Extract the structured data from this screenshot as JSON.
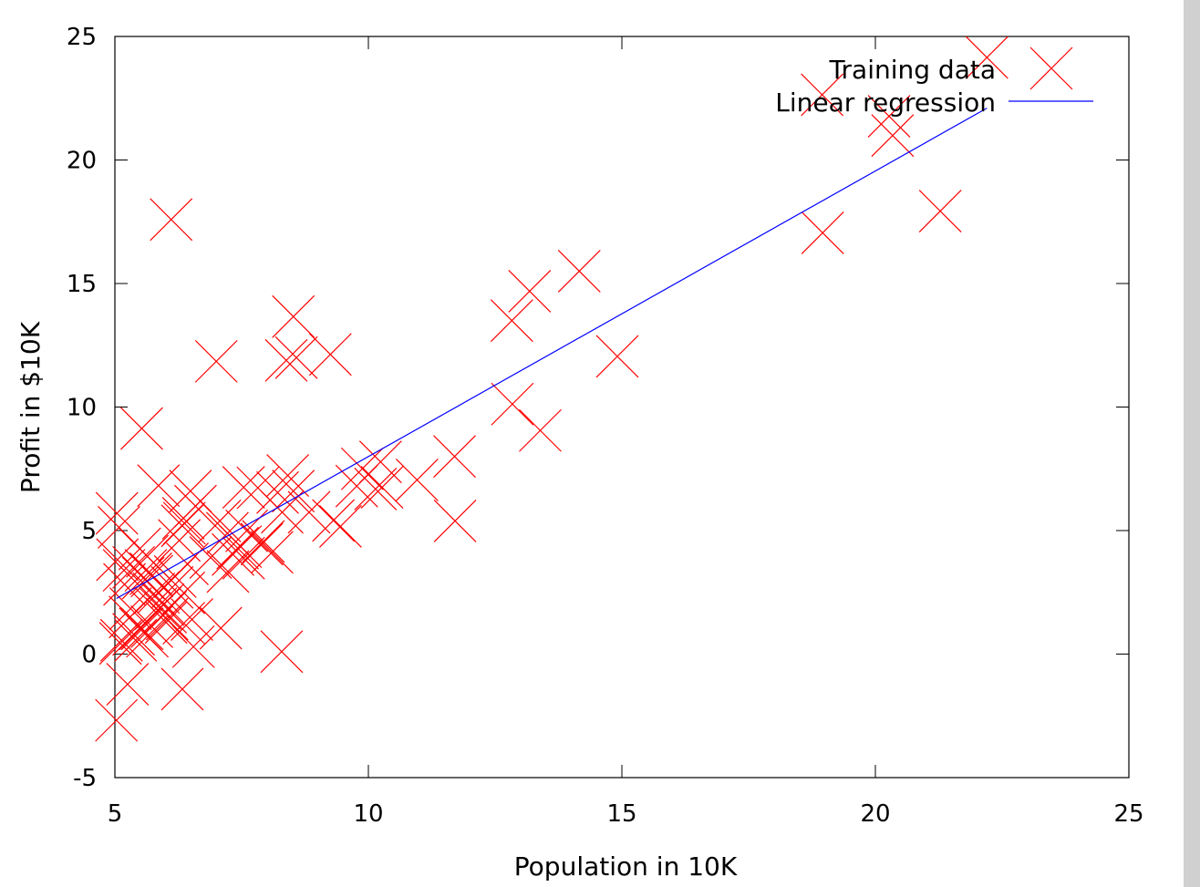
{
  "chart_data": {
    "type": "scatter",
    "xlabel": "Population in 10K",
    "ylabel": "Profit in $10K",
    "xlim": [
      5,
      25
    ],
    "ylim": [
      -5,
      25
    ],
    "xticks": [
      5,
      10,
      15,
      20,
      25
    ],
    "yticks": [
      -5,
      0,
      5,
      10,
      15,
      20,
      25
    ],
    "grid": false,
    "legend_position": "top-right",
    "series": [
      {
        "name": "Training data",
        "kind": "scatter",
        "marker": "x",
        "color": "#ff0000",
        "points": [
          [
            6.11,
            17.59
          ],
          [
            5.53,
            9.13
          ],
          [
            8.52,
            13.66
          ],
          [
            7.0,
            11.85
          ],
          [
            5.86,
            6.82
          ],
          [
            8.38,
            11.89
          ],
          [
            7.48,
            4.35
          ],
          [
            8.58,
            12.0
          ],
          [
            6.49,
            6.6
          ],
          [
            5.05,
            3.82
          ],
          [
            5.71,
            3.25
          ],
          [
            14.16,
            15.5
          ],
          [
            5.73,
            3.16
          ],
          [
            8.41,
            7.23
          ],
          [
            5.64,
            0.72
          ],
          [
            5.37,
            3.51
          ],
          [
            6.37,
            5.3
          ],
          [
            5.13,
            0.56
          ],
          [
            6.43,
            3.65
          ],
          [
            7.07,
            5.39
          ],
          [
            6.19,
            3.14
          ],
          [
            20.27,
            21.77
          ],
          [
            5.49,
            4.26
          ],
          [
            6.33,
            5.19
          ],
          [
            5.56,
            3.08
          ],
          [
            18.95,
            22.64
          ],
          [
            12.83,
            13.5
          ],
          [
            10.96,
            7.05
          ],
          [
            13.18,
            14.69
          ],
          [
            22.2,
            24.15
          ],
          [
            5.25,
            -1.22
          ],
          [
            6.59,
            5.99
          ],
          [
            9.25,
            12.13
          ],
          [
            5.89,
            1.85
          ],
          [
            8.21,
            6.54
          ],
          [
            7.93,
            4.56
          ],
          [
            8.1,
            4.12
          ],
          [
            5.61,
            3.39
          ],
          [
            12.84,
            10.12
          ],
          [
            6.35,
            5.5
          ],
          [
            5.41,
            0.56
          ],
          [
            6.89,
            3.91
          ],
          [
            11.71,
            5.39
          ],
          [
            5.77,
            2.44
          ],
          [
            7.82,
            6.73
          ],
          [
            7.09,
            1.05
          ],
          [
            5.08,
            5.13
          ],
          [
            5.81,
            1.84
          ],
          [
            11.7,
            8.0
          ],
          [
            5.54,
            1.02
          ],
          [
            7.54,
            6.75
          ],
          [
            5.31,
            1.84
          ],
          [
            7.42,
            4.29
          ],
          [
            7.6,
            4.99
          ],
          [
            6.03,
            1.42
          ],
          [
            6.33,
            -1.42
          ],
          [
            6.36,
            2.48
          ],
          [
            6.27,
            4.6
          ],
          [
            5.64,
            3.96
          ],
          [
            9.31,
            5.41
          ],
          [
            9.45,
            5.17
          ],
          [
            8.83,
            5.74
          ],
          [
            5.18,
            3.39
          ],
          [
            21.28,
            17.93
          ],
          [
            14.91,
            12.05
          ],
          [
            18.96,
            17.05
          ],
          [
            7.22,
            4.89
          ],
          [
            8.3,
            5.74
          ],
          [
            10.24,
            7.78
          ],
          [
            5.5,
            1.02
          ],
          [
            20.34,
            20.99
          ],
          [
            10.14,
            6.68
          ],
          [
            7.33,
            4.03
          ],
          [
            6.01,
            1.28
          ],
          [
            7.23,
            3.34
          ],
          [
            5.03,
            -2.68
          ],
          [
            6.55,
            0.3
          ],
          [
            7.54,
            3.88
          ],
          [
            5.04,
            5.7
          ],
          [
            10.27,
            6.75
          ],
          [
            5.11,
            0.43
          ],
          [
            5.73,
            1.11
          ],
          [
            5.19,
            2.82
          ],
          [
            6.36,
            1.25
          ],
          [
            9.77,
            6.8
          ],
          [
            6.52,
            1.4
          ],
          [
            8.52,
            6.6
          ],
          [
            8.29,
            0.1
          ],
          [
            9.88,
            7.5
          ],
          [
            13.39,
            9.05
          ],
          [
            7.9,
            4.45
          ],
          [
            6.13,
            2.7
          ],
          [
            5.37,
            0.8
          ],
          [
            5.95,
            2.0
          ],
          [
            5.86,
            2.5
          ],
          [
            5.3,
            1.5
          ],
          [
            6.0,
            1.7
          ]
        ]
      },
      {
        "name": "Linear regression",
        "kind": "line",
        "color": "#0000ff",
        "points": [
          [
            5.03,
            2.25
          ],
          [
            22.2,
            22.1
          ]
        ]
      }
    ]
  }
}
